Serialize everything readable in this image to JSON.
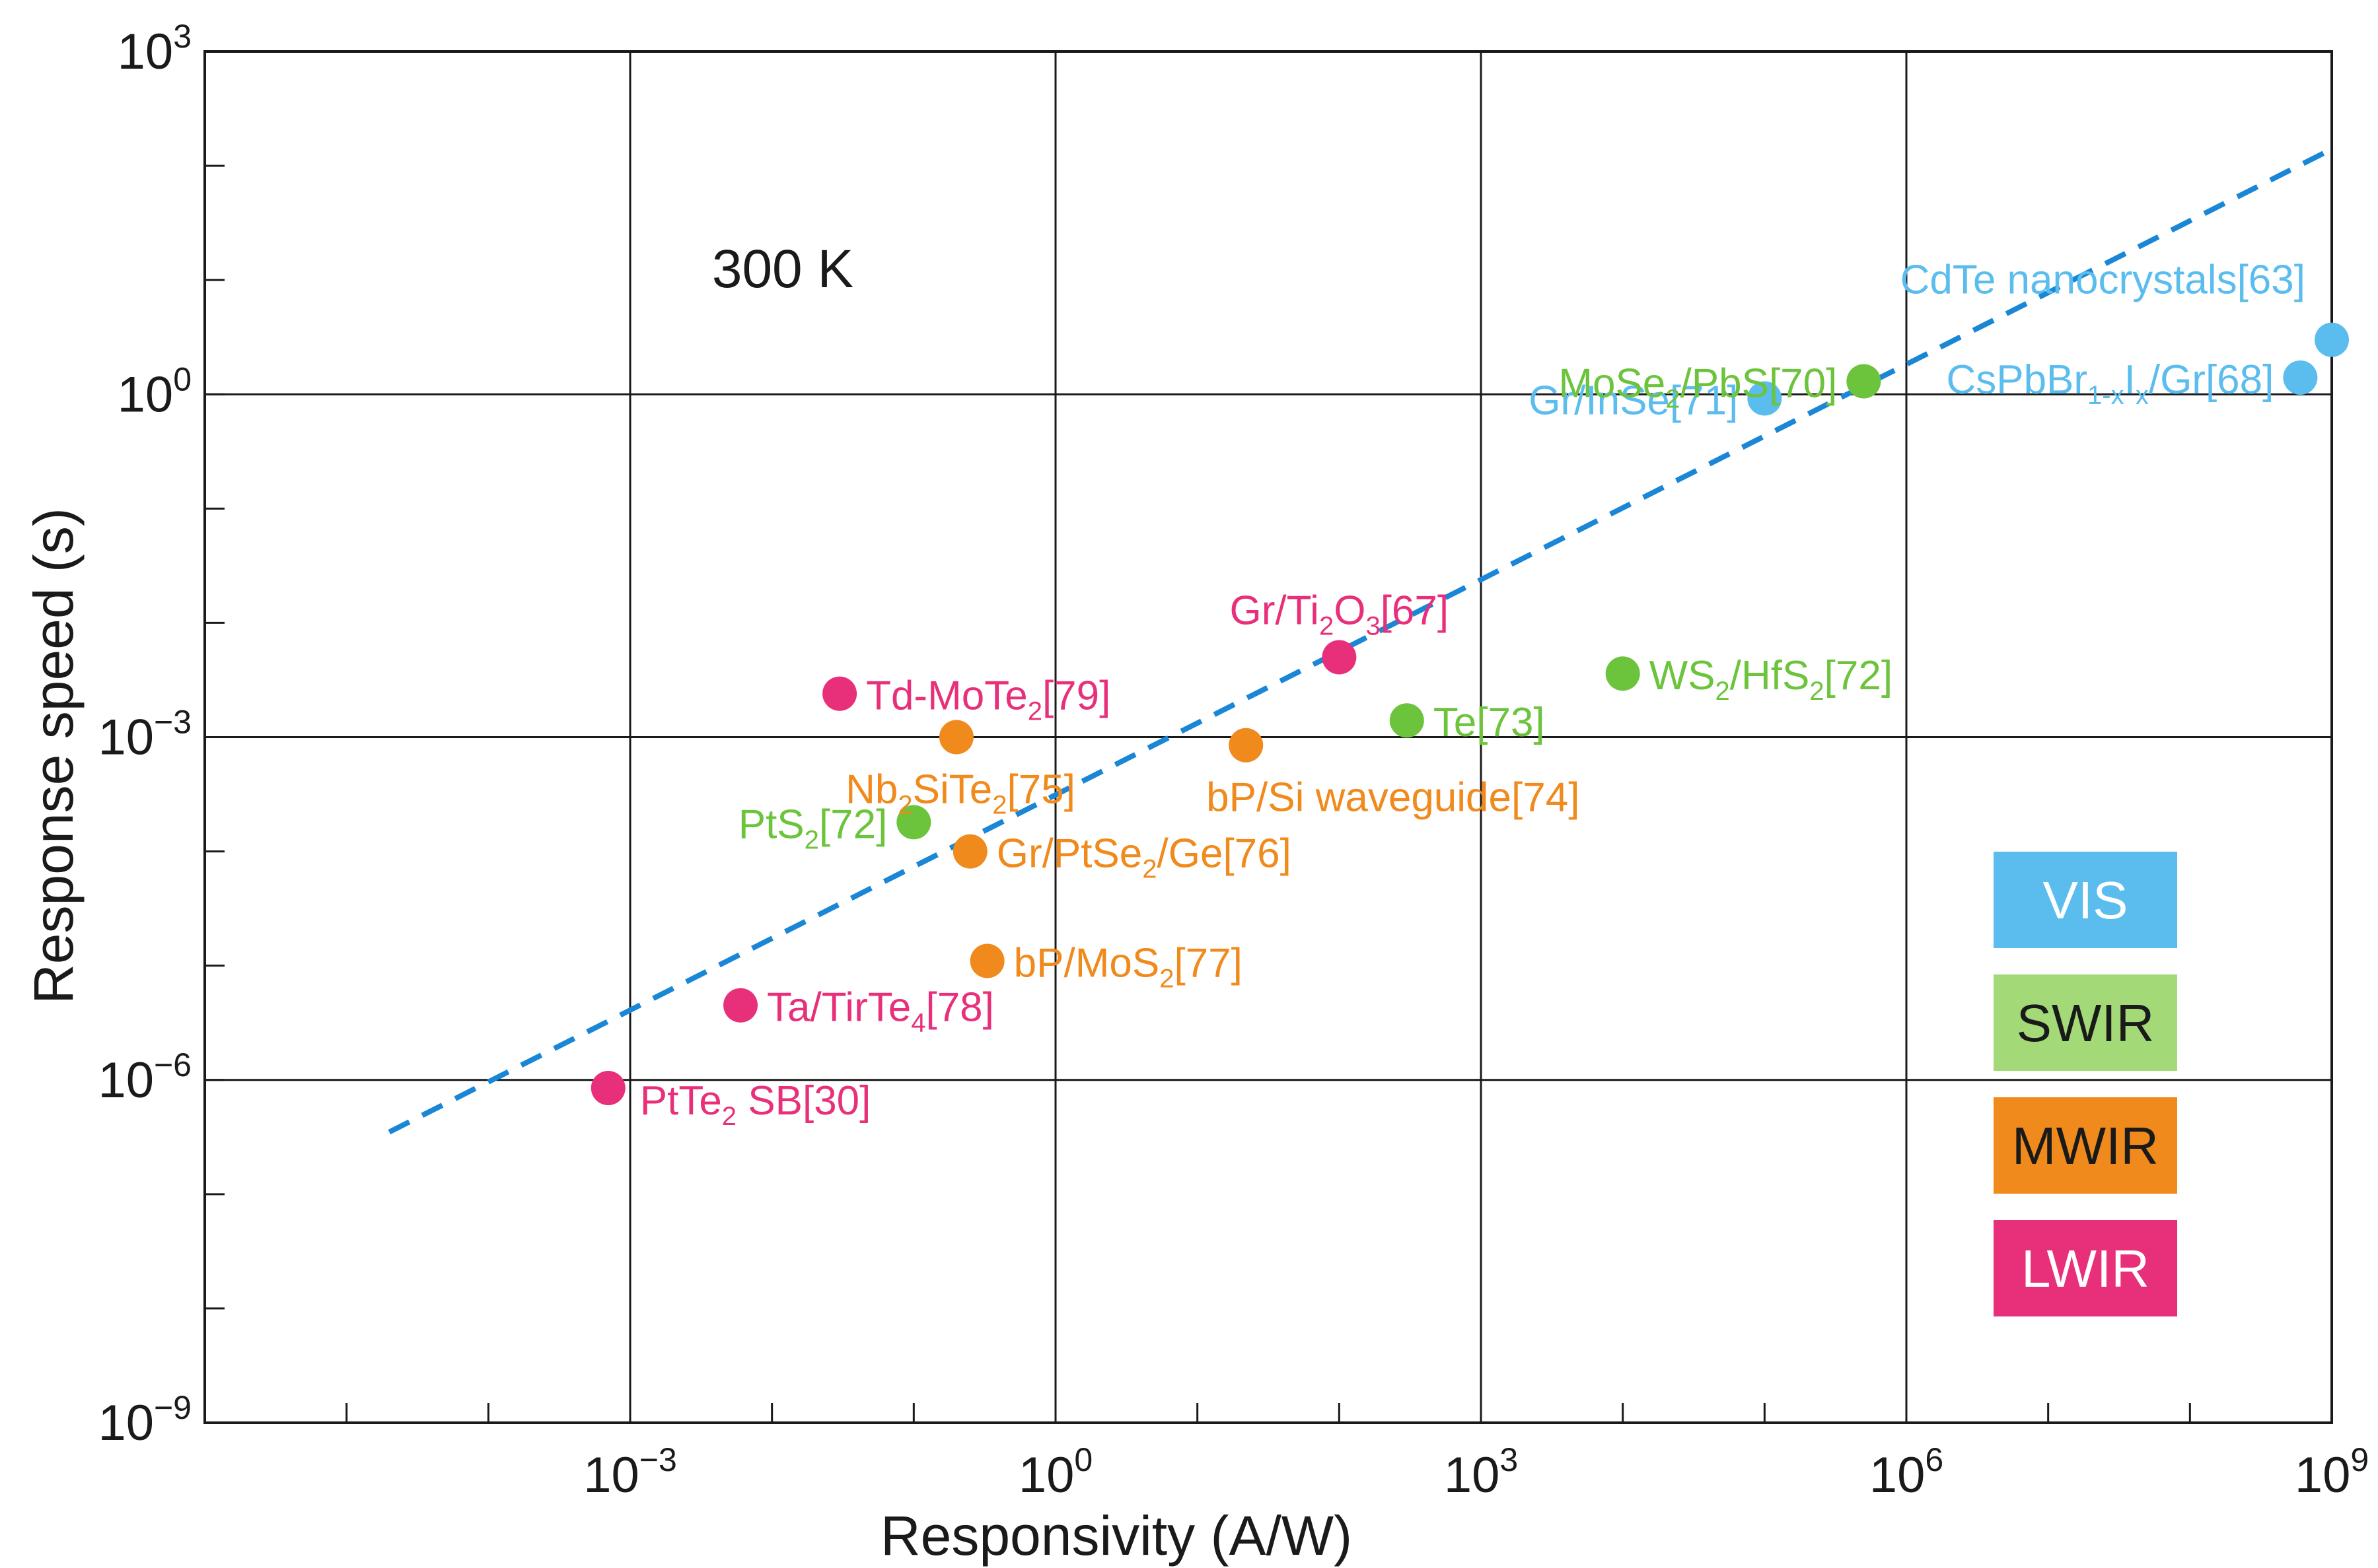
{
  "chart_data": {
    "type": "scatter",
    "title": "",
    "annotation": "300 K",
    "xlabel": "Responsivity (A/W)",
    "ylabel": "Response speed (s)",
    "x_scale": "log10",
    "y_scale": "log10",
    "xlim": [
      1e-06,
      1000000000.0
    ],
    "ylim": [
      1e-09,
      1000.0
    ],
    "grid": true,
    "x_ticks": [
      {
        "base": "10",
        "exp": "−3",
        "value": 0.001
      },
      {
        "base": "10",
        "exp": "0",
        "value": 1
      },
      {
        "base": "10",
        "exp": "3",
        "value": 1000
      },
      {
        "base": "10",
        "exp": "6",
        "value": 1000000
      },
      {
        "base": "10",
        "exp": "9",
        "value": 1000000000
      }
    ],
    "y_ticks": [
      {
        "base": "10",
        "exp": "−9",
        "value": 1e-09
      },
      {
        "base": "10",
        "exp": "−6",
        "value": 1e-06
      },
      {
        "base": "10",
        "exp": "−3",
        "value": 0.001
      },
      {
        "base": "10",
        "exp": "0",
        "value": 1
      },
      {
        "base": "10",
        "exp": "3",
        "value": 1000
      }
    ],
    "categories": [
      {
        "name": "VIS",
        "color": "#5bbdee",
        "text_color": "#ffffff"
      },
      {
        "name": "SWIR",
        "color": "#a3d977",
        "text_color": "#1a1a1a"
      },
      {
        "name": "MWIR",
        "color": "#f08a1c",
        "text_color": "#1a1a1a"
      },
      {
        "name": "LWIR",
        "color": "#e8307a",
        "text_color": "#ffffff"
      }
    ],
    "marker_colors": {
      "VIS": "#5bbdee",
      "SWIR": "#6cc33c",
      "MWIR": "#f08a1c",
      "LWIR": "#e8307a"
    },
    "points": [
      {
        "id": "cdte",
        "category": "VIS",
        "x": 1000000000.0,
        "y": 3.0,
        "label": [
          {
            "t": "CdTe nanocrystals[63]"
          }
        ],
        "anchor": "end"
      },
      {
        "id": "cspbbr",
        "category": "VIS",
        "x": 600000000.0,
        "y": 1.4,
        "label": [
          {
            "t": "CsPbBr"
          },
          {
            "t": "1-x",
            "s": "sub"
          },
          {
            "t": "I"
          },
          {
            "t": "x",
            "s": "sub"
          },
          {
            "t": "/Gr[68]"
          }
        ],
        "anchor": "end"
      },
      {
        "id": "grinse",
        "category": "VIS",
        "x": 100000.0,
        "y": 0.92,
        "label": [
          {
            "t": "Gr/InSe[71]"
          }
        ],
        "anchor": "end"
      },
      {
        "id": "mose2",
        "category": "SWIR",
        "x": 500000.0,
        "y": 1.3,
        "label": [
          {
            "t": "MoSe"
          },
          {
            "t": "2",
            "s": "sub"
          },
          {
            "t": "/PbS[70]"
          }
        ],
        "anchor": "end"
      },
      {
        "id": "ws2",
        "category": "SWIR",
        "x": 10000.0,
        "y": 0.0036,
        "label": [
          {
            "t": "WS"
          },
          {
            "t": "2",
            "s": "sub"
          },
          {
            "t": "/HfS"
          },
          {
            "t": "2",
            "s": "sub"
          },
          {
            "t": "[72]"
          }
        ],
        "anchor": "start"
      },
      {
        "id": "te",
        "category": "SWIR",
        "x": 300,
        "y": 0.0014,
        "label": [
          {
            "t": "Te[73]"
          }
        ],
        "anchor": "start"
      },
      {
        "id": "pts2",
        "category": "SWIR",
        "x": 0.1,
        "y": 0.00018,
        "label": [
          {
            "t": "PtS"
          },
          {
            "t": "2",
            "s": "sub"
          },
          {
            "t": "[72]"
          }
        ],
        "anchor": "end"
      },
      {
        "id": "nb2site2",
        "category": "MWIR",
        "x": 0.2,
        "y": 0.001,
        "label": [
          {
            "t": "Nb"
          },
          {
            "t": "2",
            "s": "sub"
          },
          {
            "t": "SiTe"
          },
          {
            "t": "2",
            "s": "sub"
          },
          {
            "t": "[75]"
          }
        ],
        "anchor": "end",
        "label_pos": "below"
      },
      {
        "id": "bpsi",
        "category": "MWIR",
        "x": 22,
        "y": 0.00085,
        "label": [
          {
            "t": "bP/Si waveguide[74]"
          }
        ],
        "anchor": "start",
        "label_pos": "below"
      },
      {
        "id": "grptse2",
        "category": "MWIR",
        "x": 0.25,
        "y": 0.0001,
        "label": [
          {
            "t": "Gr/PtSe"
          },
          {
            "t": "2",
            "s": "sub"
          },
          {
            "t": "/Ge[76]"
          }
        ],
        "anchor": "start"
      },
      {
        "id": "bpmos2",
        "category": "MWIR",
        "x": 0.33,
        "y": 1.1e-05,
        "label": [
          {
            "t": "bP/MoS"
          },
          {
            "t": "2",
            "s": "sub"
          },
          {
            "t": "[77]"
          }
        ],
        "anchor": "start"
      },
      {
        "id": "grti2o3",
        "category": "LWIR",
        "x": 100,
        "y": 0.005,
        "label": [
          {
            "t": "Gr/Ti"
          },
          {
            "t": "2",
            "s": "sub"
          },
          {
            "t": "O"
          },
          {
            "t": "3",
            "s": "sub"
          },
          {
            "t": "[67]"
          }
        ],
        "anchor": "middle",
        "label_pos": "above"
      },
      {
        "id": "tdmote2",
        "category": "LWIR",
        "x": 0.03,
        "y": 0.0024,
        "label": [
          {
            "t": "Td-MoTe"
          },
          {
            "t": "2",
            "s": "sub"
          },
          {
            "t": "[79]"
          }
        ],
        "anchor": "start"
      },
      {
        "id": "tatirte4",
        "category": "LWIR",
        "x": 0.006,
        "y": 4.5e-06,
        "label": [
          {
            "t": "Ta/TirTe"
          },
          {
            "t": "4",
            "s": "sub"
          },
          {
            "t": "[78]"
          }
        ],
        "anchor": "start"
      },
      {
        "id": "ptte2",
        "category": "LWIR",
        "x": 0.0007,
        "y": 8.5e-07,
        "label": [
          {
            "t": "PtTe"
          },
          {
            "t": "2",
            "s": "sub"
          },
          {
            "t": " SB[30]"
          }
        ],
        "anchor": "start",
        "label_pos": "below-right"
      }
    ],
    "trend_line": {
      "style": "dashed",
      "color": "#1a86d6",
      "x": [
        2e-05,
        1000000000.0
      ],
      "y": [
        3.5e-07,
        140
      ]
    }
  }
}
